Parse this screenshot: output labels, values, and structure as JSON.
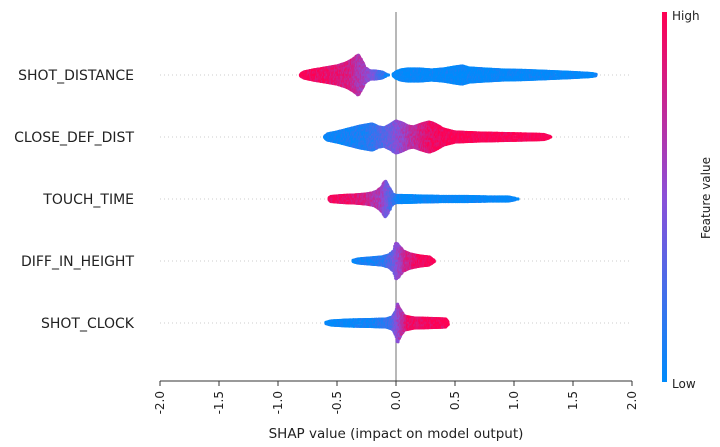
{
  "chart_data": {
    "type": "scatter",
    "subtype": "shap-beeswarm",
    "xlabel": "SHAP value (impact on model output)",
    "xlim": [
      -2.0,
      2.0
    ],
    "x_ticks": [
      "-2.0",
      "-1.5",
      "-1.0",
      "-0.5",
      "0.0",
      "0.5",
      "1.0",
      "1.5",
      "2.0"
    ],
    "zero_line": 0.0,
    "colorbar": {
      "title": "Feature value",
      "high_label": "High",
      "low_label": "Low",
      "high_color": "#ff0052",
      "low_color": "#008bfb"
    },
    "features": [
      {
        "name": "SHOT_DISTANCE",
        "min": -0.81,
        "max": 1.73,
        "profile": [
          [
            -0.82,
            0
          ],
          [
            -0.78,
            3
          ],
          [
            -0.7,
            5
          ],
          [
            -0.6,
            7
          ],
          [
            -0.5,
            9
          ],
          [
            -0.42,
            12
          ],
          [
            -0.36,
            16
          ],
          [
            -0.32,
            20
          ],
          [
            -0.29,
            14
          ],
          [
            -0.26,
            7
          ],
          [
            -0.22,
            4
          ],
          [
            -0.18,
            4
          ],
          [
            -0.12,
            3
          ],
          [
            -0.07,
            0
          ],
          [
            -0.03,
            0
          ],
          [
            0.0,
            3
          ],
          [
            0.04,
            5
          ],
          [
            0.1,
            6
          ],
          [
            0.2,
            6
          ],
          [
            0.3,
            5
          ],
          [
            0.4,
            6
          ],
          [
            0.5,
            8
          ],
          [
            0.56,
            9
          ],
          [
            0.62,
            7
          ],
          [
            0.75,
            6
          ],
          [
            0.9,
            5
          ],
          [
            1.1,
            4.5
          ],
          [
            1.3,
            3.5
          ],
          [
            1.5,
            2.5
          ],
          [
            1.65,
            1.5
          ],
          [
            1.73,
            0
          ]
        ],
        "color_stops": [
          [
            -0.82,
            1.0
          ],
          [
            -0.4,
            0.82
          ],
          [
            -0.22,
            0.5
          ],
          [
            -0.05,
            0.0
          ],
          [
            1.73,
            0.0
          ]
        ]
      },
      {
        "name": "CLOSE_DEF_DIST",
        "min": -0.6,
        "max": 1.32,
        "profile": [
          [
            -0.61,
            0
          ],
          [
            -0.58,
            3
          ],
          [
            -0.5,
            5
          ],
          [
            -0.4,
            8
          ],
          [
            -0.3,
            11
          ],
          [
            -0.2,
            13
          ],
          [
            -0.15,
            10
          ],
          [
            -0.1,
            9
          ],
          [
            -0.05,
            12
          ],
          [
            0.0,
            16
          ],
          [
            0.05,
            14
          ],
          [
            0.1,
            11
          ],
          [
            0.15,
            10
          ],
          [
            0.22,
            13
          ],
          [
            0.28,
            15
          ],
          [
            0.33,
            13
          ],
          [
            0.4,
            8
          ],
          [
            0.5,
            5
          ],
          [
            0.7,
            4
          ],
          [
            0.9,
            3.5
          ],
          [
            1.1,
            3
          ],
          [
            1.25,
            2.5
          ],
          [
            1.32,
            0
          ]
        ],
        "color_stops": [
          [
            -0.61,
            0.0
          ],
          [
            -0.25,
            0.12
          ],
          [
            -0.1,
            0.3
          ],
          [
            0.05,
            0.55
          ],
          [
            0.15,
            0.72
          ],
          [
            0.3,
            0.92
          ],
          [
            0.5,
            1.0
          ],
          [
            1.32,
            1.0
          ]
        ]
      },
      {
        "name": "TOUCH_TIME",
        "min": -0.58,
        "max": 1.04,
        "profile": [
          [
            -0.58,
            0
          ],
          [
            -0.55,
            2.5
          ],
          [
            -0.45,
            3.5
          ],
          [
            -0.35,
            4
          ],
          [
            -0.25,
            5
          ],
          [
            -0.2,
            6
          ],
          [
            -0.16,
            8
          ],
          [
            -0.12,
            12
          ],
          [
            -0.09,
            18
          ],
          [
            -0.06,
            12
          ],
          [
            -0.03,
            5
          ],
          [
            0.0,
            3.5
          ],
          [
            0.05,
            3.5
          ],
          [
            0.2,
            3
          ],
          [
            0.4,
            2.5
          ],
          [
            0.6,
            2.5
          ],
          [
            0.8,
            2
          ],
          [
            0.95,
            2
          ],
          [
            1.04,
            0
          ]
        ],
        "color_stops": [
          [
            -0.58,
            1.0
          ],
          [
            -0.3,
            0.85
          ],
          [
            -0.12,
            0.6
          ],
          [
            -0.03,
            0.25
          ],
          [
            0.05,
            0.0
          ],
          [
            1.04,
            0.0
          ]
        ]
      },
      {
        "name": "DIFF_IN_HEIGHT",
        "min": -0.37,
        "max": 0.33,
        "profile": [
          [
            -0.38,
            0
          ],
          [
            -0.32,
            2
          ],
          [
            -0.22,
            3
          ],
          [
            -0.12,
            4
          ],
          [
            -0.06,
            6
          ],
          [
            -0.02,
            10
          ],
          [
            0.0,
            18
          ],
          [
            0.02,
            16
          ],
          [
            0.06,
            10
          ],
          [
            0.12,
            7
          ],
          [
            0.2,
            5
          ],
          [
            0.28,
            4
          ],
          [
            0.33,
            0
          ]
        ],
        "color_stops": [
          [
            -0.38,
            0.0
          ],
          [
            -0.1,
            0.15
          ],
          [
            0.0,
            0.45
          ],
          [
            0.08,
            0.75
          ],
          [
            0.2,
            0.95
          ],
          [
            0.33,
            1.0
          ]
        ]
      },
      {
        "name": "SHOT_CLOCK",
        "min": -0.6,
        "max": 0.45,
        "profile": [
          [
            -0.61,
            0
          ],
          [
            -0.55,
            2
          ],
          [
            -0.4,
            3
          ],
          [
            -0.2,
            3.5
          ],
          [
            -0.08,
            4
          ],
          [
            -0.03,
            6
          ],
          [
            0.0,
            12
          ],
          [
            0.01,
            20
          ],
          [
            0.03,
            14
          ],
          [
            0.07,
            7
          ],
          [
            0.15,
            5
          ],
          [
            0.3,
            4.5
          ],
          [
            0.42,
            4
          ],
          [
            0.45,
            0
          ]
        ],
        "color_stops": [
          [
            -0.61,
            0.0
          ],
          [
            -0.2,
            0.05
          ],
          [
            -0.05,
            0.2
          ],
          [
            0.02,
            0.55
          ],
          [
            0.1,
            0.9
          ],
          [
            0.45,
            1.0
          ]
        ]
      }
    ]
  }
}
